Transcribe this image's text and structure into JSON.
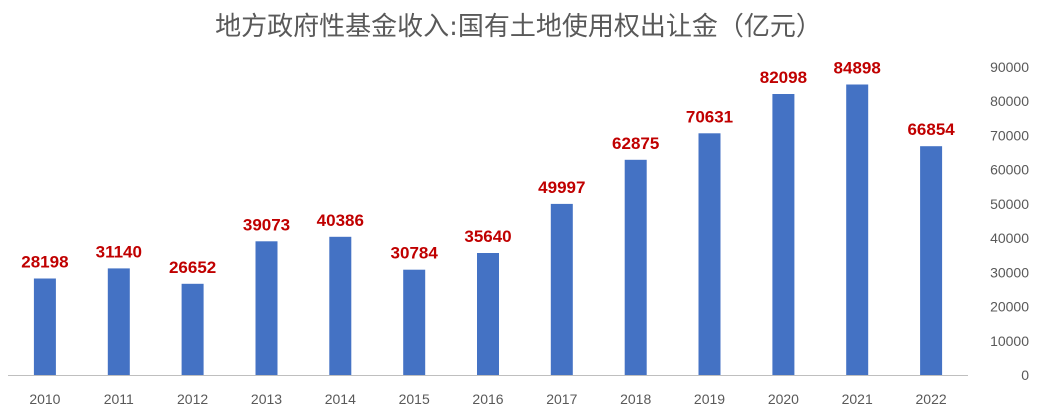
{
  "chart_data": {
    "type": "bar",
    "title": "地方政府性基金收入:国有土地使用权出让金（亿元）",
    "xlabel": "",
    "ylabel": "",
    "categories": [
      "2010",
      "2011",
      "2012",
      "2013",
      "2014",
      "2015",
      "2016",
      "2017",
      "2018",
      "2019",
      "2020",
      "2021",
      "2022"
    ],
    "values": [
      28198,
      31140,
      26652,
      39073,
      40386,
      30784,
      35640,
      49997,
      62875,
      70631,
      82098,
      84898,
      66854
    ],
    "data_labels": [
      "28198",
      "31140",
      "26652",
      "39073",
      "40386",
      "30784",
      "35640",
      "49997",
      "62875",
      "70631",
      "82098",
      "84898",
      "66854"
    ],
    "ylim": [
      0,
      90000
    ],
    "y_ticks": [
      "0",
      "10000",
      "20000",
      "30000",
      "40000",
      "50000",
      "60000",
      "70000",
      "80000",
      "90000"
    ],
    "y_axis_side": "right",
    "grid": false,
    "legend": "none",
    "colors": {
      "bar": "#4472C4",
      "data_label": "#C00000",
      "axis": "#BFBFBF",
      "text": "#595959"
    }
  }
}
